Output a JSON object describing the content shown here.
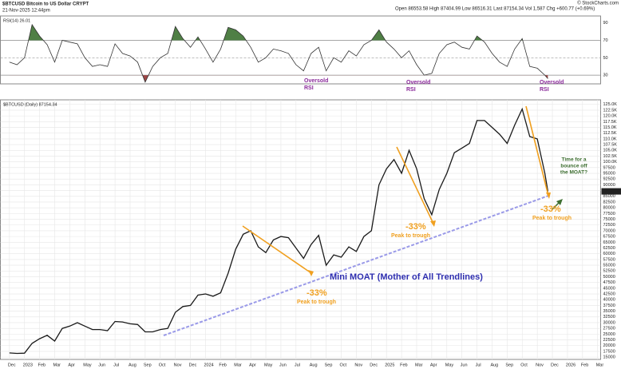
{
  "header": {
    "title": "$BTCUSD Bitcoin to US Dollar CRYPT",
    "date": "21-Nov-2025 12:44pm",
    "quote": "Open 86553.58 High 87404.99 Low 86516.31 Last 87154.34 Vol 1,587 Chg +600.77 (+0.69%)",
    "credit": "© StockCharts.com"
  },
  "annotations": {
    "oversold": [
      [
        "Oversold",
        "RSI"
      ],
      [
        "Oversold",
        "RSI"
      ],
      [
        "Oversold",
        "RSI"
      ]
    ],
    "drops": [
      "-33%",
      "-33%",
      "-33%"
    ],
    "peak": [
      "Peak to trough",
      "Peak to trough",
      "Peak to trough"
    ],
    "bounce": [
      "Time for a",
      "bounce off",
      "the MOAT?"
    ],
    "moat": "Mini MOAT (Mother of All Trendlines)"
  },
  "chart_data": [
    {
      "type": "line",
      "title": "RSI(14) 26.01",
      "color": "#333333",
      "x": [
        0,
        0.5,
        1,
        1.5,
        2,
        2.5,
        3,
        3.5,
        4,
        4.5,
        5,
        5.5,
        6,
        6.5,
        7,
        7.5,
        8,
        8.5,
        9,
        9.5,
        10,
        10.5,
        11,
        11.5,
        12,
        12.5,
        13,
        13.5,
        14,
        14.5,
        15,
        15.5,
        16,
        16.5,
        17,
        17.5,
        18,
        18.5,
        19,
        19.5,
        20,
        20.5,
        21,
        21.5,
        22,
        22.5,
        23,
        23.5,
        24,
        24.5,
        25,
        25.5,
        26,
        26.5,
        27,
        27.5,
        28,
        28.5,
        29,
        29.5,
        30,
        30.5,
        31,
        31.5,
        32,
        32.5,
        33,
        33.5,
        34,
        34.5,
        35,
        35.5,
        35.7
      ],
      "values": [
        45,
        42,
        50,
        88,
        75,
        65,
        45,
        70,
        68,
        66,
        50,
        40,
        42,
        40,
        66,
        55,
        52,
        45,
        22,
        40,
        50,
        55,
        86,
        72,
        62,
        74,
        60,
        45,
        60,
        85,
        82,
        75,
        62,
        45,
        50,
        60,
        58,
        55,
        42,
        35,
        55,
        62,
        35,
        50,
        45,
        58,
        52,
        65,
        70,
        82,
        68,
        60,
        50,
        58,
        42,
        30,
        32,
        55,
        65,
        68,
        62,
        60,
        75,
        68,
        55,
        45,
        40,
        60,
        72,
        40,
        38,
        30,
        26.01
      ],
      "xlim": [
        -0.6,
        39.2
      ],
      "ylim": [
        20,
        98
      ],
      "yticks": [
        30,
        50,
        70,
        90
      ],
      "overbought": 70,
      "oversold": 30,
      "overbought_color": "#4f7f45",
      "oversold_color": "#a04848"
    },
    {
      "type": "line",
      "title": "$BTCUSD (Daily) 87154.34",
      "color": "#1a1a1a",
      "x": [
        0,
        0.5,
        1,
        1.5,
        2,
        2.5,
        3,
        3.5,
        4,
        4.5,
        5,
        5.5,
        6,
        6.5,
        7,
        7.5,
        8,
        8.5,
        9,
        9.5,
        10,
        10.5,
        11,
        11.5,
        12,
        12.5,
        13,
        13.5,
        14,
        14.5,
        15,
        15.5,
        16,
        16.5,
        17,
        17.5,
        18,
        18.5,
        19,
        19.5,
        20,
        20.5,
        21,
        21.5,
        22,
        22.5,
        23,
        23.5,
        24,
        24.5,
        25,
        25.5,
        26,
        26.5,
        27,
        27.5,
        28,
        28.5,
        29,
        29.5,
        30,
        30.5,
        31,
        31.5,
        32,
        32.5,
        33,
        33.5,
        34,
        34.5,
        35,
        35.5,
        35.7
      ],
      "values": [
        16800,
        16600,
        16700,
        21000,
        23000,
        24500,
        22000,
        27500,
        28500,
        30000,
        28500,
        27000,
        27000,
        26500,
        30500,
        30300,
        29500,
        29200,
        26000,
        26000,
        27000,
        27500,
        34500,
        37000,
        37500,
        42000,
        42500,
        41500,
        43000,
        51500,
        62000,
        68500,
        70000,
        63000,
        60500,
        66000,
        67500,
        67000,
        62500,
        58000,
        64000,
        68000,
        55000,
        59500,
        58500,
        63000,
        61000,
        67500,
        70000,
        90000,
        97000,
        101000,
        95000,
        105000,
        97000,
        84000,
        77000,
        88000,
        95000,
        104000,
        106000,
        108000,
        118000,
        118000,
        115000,
        112000,
        108000,
        116000,
        123000,
        111000,
        110000,
        95000,
        87154.34
      ],
      "xlim": [
        -0.6,
        39.2
      ],
      "ylim": [
        14000,
        127000
      ],
      "grid": true,
      "xticks": [
        {
          "value": 0,
          "label": "Dec"
        },
        {
          "value": 1,
          "label": "2023"
        },
        {
          "value": 2,
          "label": "Feb"
        },
        {
          "value": 3,
          "label": "Mar"
        },
        {
          "value": 4,
          "label": "Apr"
        },
        {
          "value": 5,
          "label": "May"
        },
        {
          "value": 6,
          "label": "Jun"
        },
        {
          "value": 7,
          "label": "Jul"
        },
        {
          "value": 8,
          "label": "Aug"
        },
        {
          "value": 9,
          "label": "Sep"
        },
        {
          "value": 10,
          "label": "Oct"
        },
        {
          "value": 11,
          "label": "Nov"
        },
        {
          "value": 12,
          "label": "Dec"
        },
        {
          "value": 13,
          "label": "2024"
        },
        {
          "value": 14,
          "label": "Feb"
        },
        {
          "value": 15,
          "label": "Mar"
        },
        {
          "value": 16,
          "label": "Apr"
        },
        {
          "value": 17,
          "label": "May"
        },
        {
          "value": 18,
          "label": "Jun"
        },
        {
          "value": 19,
          "label": "Jul"
        },
        {
          "value": 20,
          "label": "Aug"
        },
        {
          "value": 21,
          "label": "Sep"
        },
        {
          "value": 22,
          "label": "Oct"
        },
        {
          "value": 23,
          "label": "Nov"
        },
        {
          "value": 24,
          "label": "Dec"
        },
        {
          "value": 25,
          "label": "2025"
        },
        {
          "value": 26,
          "label": "Feb"
        },
        {
          "value": 27,
          "label": "Mar"
        },
        {
          "value": 28,
          "label": "Apr"
        },
        {
          "value": 29,
          "label": "May"
        },
        {
          "value": 30,
          "label": "Jun"
        },
        {
          "value": 31,
          "label": "Jul"
        },
        {
          "value": 32,
          "label": "Aug"
        },
        {
          "value": 33,
          "label": "Sep"
        },
        {
          "value": 34,
          "label": "Oct"
        },
        {
          "value": 35,
          "label": "Nov"
        },
        {
          "value": 36,
          "label": "Dec"
        },
        {
          "value": 37,
          "label": "2026"
        },
        {
          "value": 38,
          "label": "Feb"
        },
        {
          "value": 39,
          "label": "Mar"
        }
      ],
      "yticks": [
        15000,
        17500,
        20000,
        22500,
        25000,
        27500,
        30000,
        32500,
        35000,
        37500,
        40000,
        42500,
        45000,
        47500,
        50000,
        52500,
        55000,
        57500,
        60000,
        62500,
        65000,
        67500,
        70000,
        72500,
        75000,
        77500,
        80000,
        82500,
        85000,
        87500,
        90000,
        92500,
        95000,
        97500,
        {
          "value": 100000,
          "label": "100.0K"
        },
        {
          "value": 102500,
          "label": "102.5K"
        },
        {
          "value": 105000,
          "label": "105.0K"
        },
        {
          "value": 107500,
          "label": "107.5K"
        },
        {
          "value": 110000,
          "label": "110.0K"
        },
        {
          "value": 112500,
          "label": "112.5K"
        },
        {
          "value": 115000,
          "label": "115.0K"
        },
        {
          "value": 117500,
          "label": "117.5K"
        },
        {
          "value": 120000,
          "label": "120.0K"
        },
        {
          "value": 122500,
          "label": "122.5K"
        },
        {
          "value": 125000,
          "label": "125.0K"
        }
      ]
    }
  ]
}
